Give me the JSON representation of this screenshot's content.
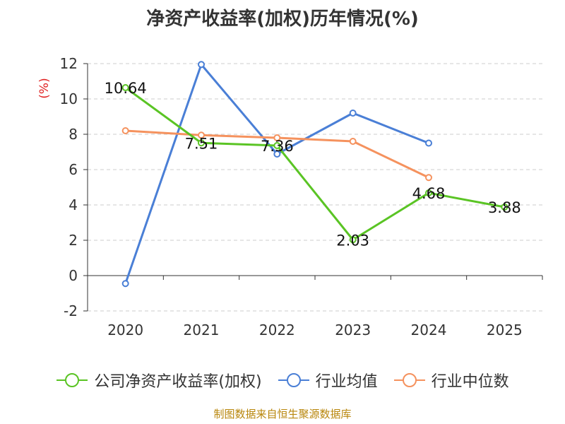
{
  "chart_data": {
    "type": "line",
    "title": "净资产收益率(加权)历年情况(%)",
    "ylabel": "(%)",
    "xlabel": "",
    "ylim": [
      -2,
      12
    ],
    "yticks": [
      -2,
      0,
      2,
      4,
      6,
      8,
      10,
      12
    ],
    "grid": true,
    "legend_position": "bottom",
    "categories": [
      "2020",
      "2021",
      "2022",
      "2023",
      "2024",
      "2025"
    ],
    "series": [
      {
        "name": "公司净资产收益率(加权)",
        "color": "#5ac424",
        "values": [
          10.64,
          7.51,
          7.36,
          2.03,
          4.68,
          3.88
        ],
        "labels": [
          "10.64",
          "7.51",
          "7.36",
          "2.03",
          "4.68",
          "3.88"
        ]
      },
      {
        "name": "行业均值",
        "color": "#4a7fd6",
        "values": [
          -0.45,
          11.95,
          6.88,
          9.2,
          7.5,
          null
        ]
      },
      {
        "name": "行业中位数",
        "color": "#f5925e",
        "values": [
          8.2,
          7.95,
          7.8,
          7.6,
          5.55,
          null
        ]
      }
    ]
  },
  "footer": "制图数据来自恒生聚源数据库"
}
